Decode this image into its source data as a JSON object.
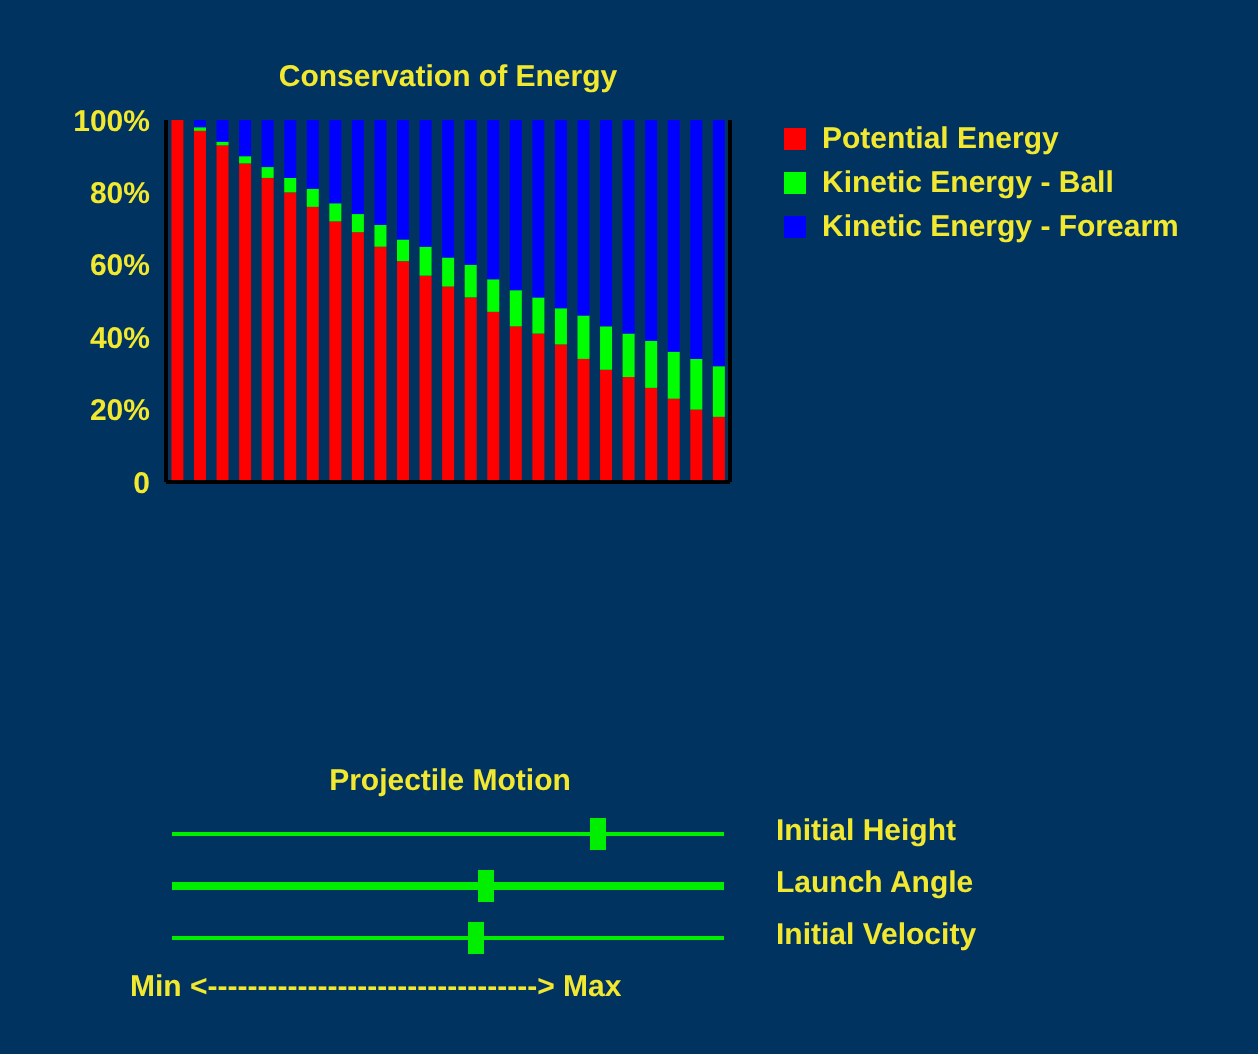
{
  "chart_data": {
    "type": "bar",
    "title": "Conservation of Energy",
    "stacked": true,
    "legend": "right",
    "tick_labels": "y",
    "categories": [
      null,
      null,
      null,
      null,
      null,
      null,
      null,
      null,
      null,
      null,
      null,
      null,
      null,
      null,
      null,
      null,
      null,
      null,
      null,
      null,
      null,
      null,
      null,
      null,
      null
    ],
    "series": [
      {
        "name": "Potential Energy",
        "color": "#ff0000",
        "values": [
          100,
          97,
          93,
          88,
          84,
          80,
          76,
          72,
          69,
          65,
          61,
          57,
          54,
          51,
          47,
          43,
          41,
          38,
          34,
          31,
          29,
          26,
          23,
          20,
          18
        ]
      },
      {
        "name": "Kinetic Energy - Ball",
        "color": "#00ff00",
        "values": [
          0,
          1,
          1,
          2,
          3,
          4,
          5,
          5,
          5,
          6,
          6,
          8,
          8,
          9,
          9,
          10,
          10,
          10,
          12,
          12,
          12,
          13,
          13,
          14,
          14
        ]
      },
      {
        "name": "Kinetic Energy - Forearm",
        "color": "#0000ff",
        "values": [
          0,
          2,
          6,
          10,
          13,
          16,
          19,
          23,
          26,
          29,
          33,
          35,
          38,
          40,
          44,
          47,
          49,
          52,
          54,
          57,
          59,
          61,
          64,
          66,
          68
        ]
      }
    ],
    "ylim": [
      0,
      100
    ],
    "yticks": [
      0,
      {
        "value": 20,
        "label": "20%"
      },
      {
        "value": 40,
        "label": "40%"
      },
      {
        "value": 60,
        "label": "60%"
      },
      {
        "value": 80,
        "label": "80%"
      },
      {
        "value": 100,
        "label": "100%"
      }
    ],
    "annotations": [
      "Projectile Motion",
      "Initial Height",
      "Launch Angle",
      "Initial Velocity",
      "Min <---------------------------------> Max"
    ]
  }
}
